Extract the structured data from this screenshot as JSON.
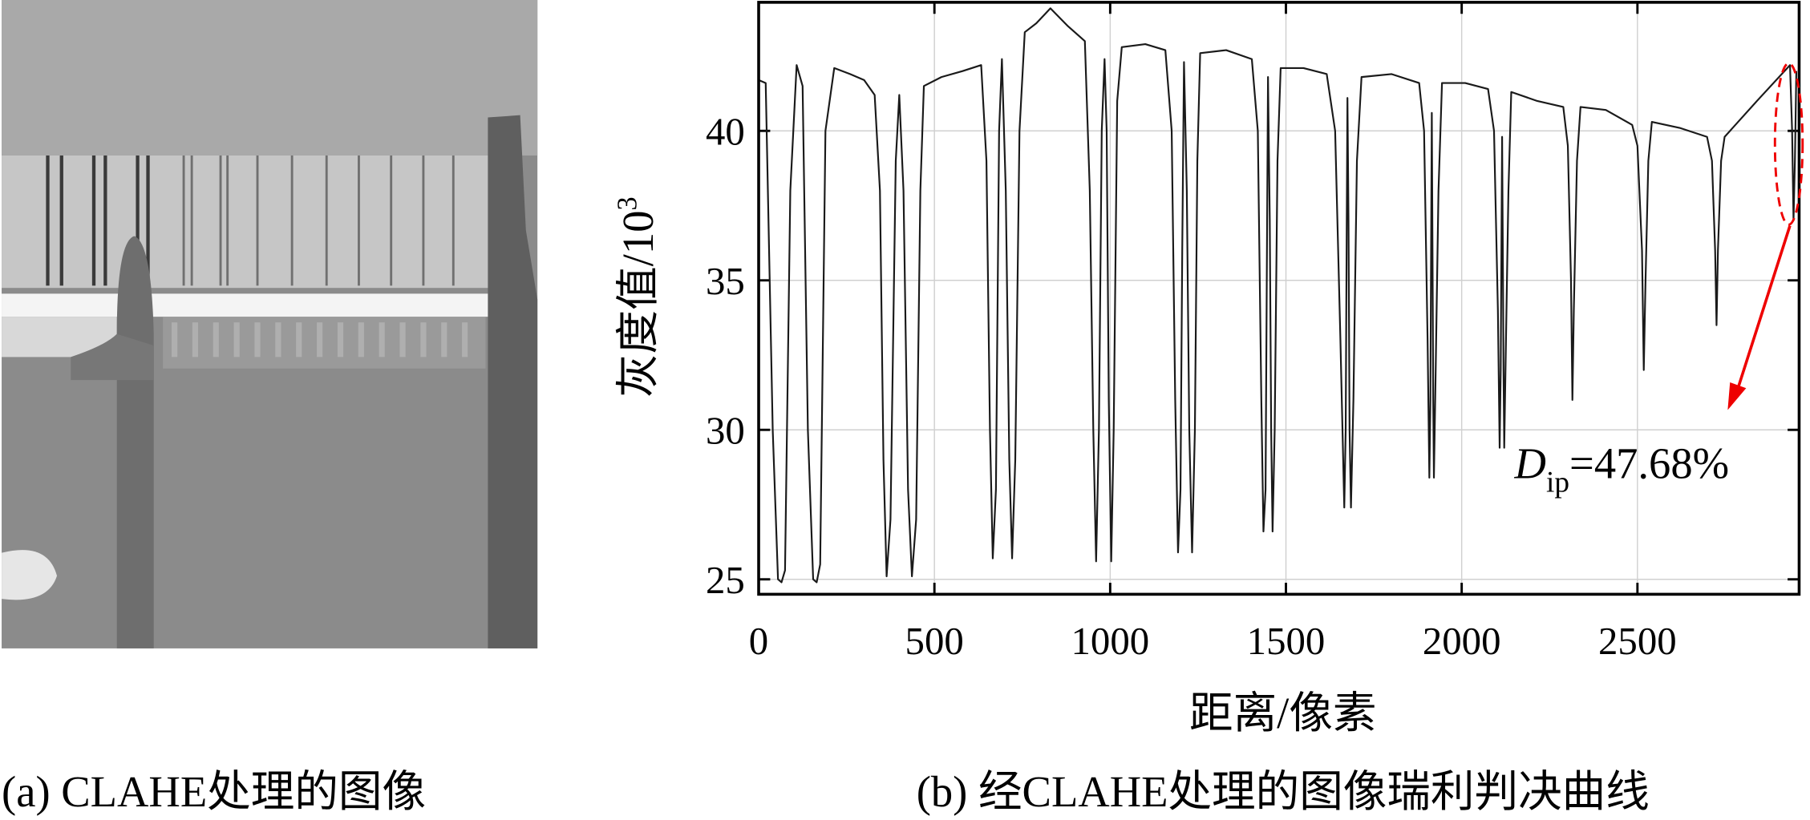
{
  "chart_data": {
    "type": "line",
    "caption_a": "(a) CLAHE处理的图像",
    "caption_b": "(b) 经CLAHE处理的图像瑞利判决曲线",
    "xlabel": "距离/像素",
    "ylabel": "灰度值/10",
    "ylabel_sup": "3",
    "annotation": {
      "symbol": "D",
      "subscript": "ip",
      "text": "=47.68%"
    },
    "x": [
      0,
      20,
      40,
      55,
      65,
      75,
      90,
      108,
      125,
      140,
      155,
      165,
      175,
      190,
      215,
      260,
      300,
      330,
      345,
      355,
      364,
      375,
      390,
      400,
      412,
      425,
      436,
      448,
      460,
      470,
      520,
      580,
      633,
      648,
      658,
      666,
      675,
      684,
      692,
      703,
      713,
      721,
      730,
      742,
      757,
      790,
      830,
      880,
      928,
      942,
      952,
      960,
      968,
      976,
      984,
      990,
      996,
      1003,
      1010,
      1020,
      1033,
      1100,
      1157,
      1175,
      1185,
      1193,
      1200,
      1205,
      1210,
      1218,
      1225,
      1233,
      1241,
      1248,
      1256,
      1330,
      1403,
      1420,
      1430,
      1436,
      1442,
      1446,
      1449,
      1454,
      1458,
      1462,
      1468,
      1476,
      1485,
      1550,
      1616,
      1640,
      1655,
      1666,
      1670,
      1673,
      1675,
      1678,
      1681,
      1685,
      1692,
      1702,
      1715,
      1800,
      1879,
      1893,
      1903,
      1908,
      1911,
      1913,
      1915,
      1917,
      1919,
      1921,
      1926,
      1934,
      1944,
      2010,
      2075,
      2092,
      2103,
      2108,
      2111,
      2113,
      2115,
      2117,
      2119,
      2121,
      2126,
      2133,
      2141,
      2215,
      2289,
      2302,
      2311,
      2315,
      2319,
      2328,
      2338,
      2410,
      2485,
      2500,
      2513,
      2518,
      2523,
      2531,
      2541,
      2620,
      2698,
      2712,
      2721,
      2725,
      2729,
      2738,
      2748,
      2840,
      2934,
      2940,
      2944,
      2948,
      2952
    ],
    "values": [
      41.7,
      41.6,
      30,
      25,
      24.9,
      25.3,
      38,
      42.2,
      41.5,
      30,
      25,
      24.9,
      25.5,
      40,
      42.1,
      41.9,
      41.7,
      41.2,
      38,
      29,
      25.1,
      27,
      39,
      41.2,
      38,
      28,
      25.1,
      27,
      38,
      41.5,
      41.8,
      42.0,
      42.2,
      39,
      30,
      25.7,
      28,
      40,
      42.4,
      38,
      29,
      25.7,
      29,
      40,
      43.3,
      43.6,
      44.1,
      43.5,
      43.0,
      38,
      30,
      25.6,
      30,
      40,
      42.4,
      40,
      31,
      25.6,
      30,
      41,
      42.8,
      42.9,
      42.7,
      40,
      31,
      25.9,
      28,
      36,
      42.3,
      38,
      30,
      25.9,
      30,
      39,
      42.6,
      42.7,
      42.4,
      40,
      31,
      26.6,
      28,
      36,
      41.8,
      37,
      30,
      26.6,
      30,
      39,
      42.1,
      42.1,
      41.9,
      40,
      33,
      27.4,
      30,
      37,
      41.1,
      37,
      30,
      27.4,
      31,
      39,
      41.8,
      41.9,
      41.6,
      40,
      33,
      28.4,
      31,
      36,
      40.6,
      36,
      31,
      28.4,
      32,
      38,
      41.6,
      41.6,
      41.4,
      40,
      34,
      29.4,
      32,
      36,
      39.8,
      36,
      32,
      29.4,
      33,
      38,
      41.3,
      41.0,
      40.8,
      39.5,
      35,
      31,
      34,
      39,
      40.8,
      40.7,
      40.2,
      39.5,
      36,
      32,
      35,
      39,
      40.3,
      40.1,
      39.8,
      39,
      36,
      33.5,
      36,
      39,
      39.8,
      41.0,
      42.2,
      40,
      37,
      39,
      42
    ],
    "color": "#1a1a1a",
    "xlim": [
      0,
      2960
    ],
    "ylim": [
      24.5,
      44.3
    ],
    "xticks": [
      0,
      500,
      1000,
      1500,
      2000,
      2500
    ],
    "yticks": [
      25,
      30,
      35,
      40
    ],
    "grid": true
  }
}
